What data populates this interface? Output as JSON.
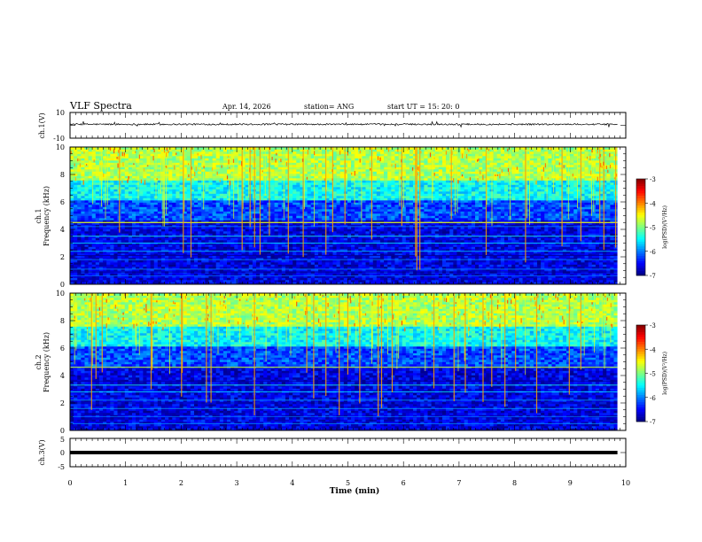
{
  "header": {
    "title": "VLF Spectra",
    "date": "Apr. 14, 2026",
    "station": "station= ANG",
    "start_ut": "start  UT  =   15: 20: 0"
  },
  "chart_data": [
    {
      "type": "line",
      "name": "ch1-waveform",
      "ylabel": "ch.1(V)",
      "ylim": [
        -10,
        10
      ],
      "yticks": [
        "10",
        "-10"
      ],
      "xlim": [
        0,
        9.85
      ],
      "baseline": 0.8,
      "noise_amplitude": 1.2
    },
    {
      "type": "heatmap",
      "name": "ch1-spectrogram",
      "ylabel": "ch.1\nFrequency (kHz)",
      "ylabel_line1": "ch.1",
      "ylabel_line2": "Frequency (kHz)",
      "ylim": [
        0,
        10
      ],
      "yticks": [
        "0",
        "2",
        "4",
        "6",
        "8",
        "10"
      ],
      "xlim": [
        0,
        9.85
      ],
      "colorbar": {
        "label": "log(PSD)(V²/Hz)",
        "ticks": [
          "-3",
          "-4",
          "-5",
          "-6",
          "-7"
        ],
        "range": [
          -7,
          -3
        ]
      }
    },
    {
      "type": "heatmap",
      "name": "ch2-spectrogram",
      "ylabel": "ch.2\nFrequency (kHz)",
      "ylabel_line1": "ch.2",
      "ylabel_line2": "Frequency (kHz)",
      "ylim": [
        0,
        10
      ],
      "yticks": [
        "0",
        "2",
        "4",
        "6",
        "8",
        "10"
      ],
      "xlim": [
        0,
        9.85
      ],
      "colorbar": {
        "label": "log(PSD)(V²/Hz)",
        "ticks": [
          "-3",
          "-4",
          "-5",
          "-6",
          "-7"
        ],
        "range": [
          -7,
          -3
        ]
      }
    },
    {
      "type": "line",
      "name": "ch3-waveform",
      "ylabel": "ch.3(V)",
      "ylim": [
        -5,
        5
      ],
      "yticks": [
        "5",
        "0",
        "-5"
      ],
      "xlim": [
        0,
        9.85
      ],
      "baseline": -0.8
    }
  ],
  "x_axis": {
    "label": "Time (min)",
    "range": [
      0,
      10
    ],
    "ticks": [
      "0",
      "1",
      "2",
      "3",
      "4",
      "5",
      "6",
      "7",
      "8",
      "9",
      "10"
    ]
  }
}
